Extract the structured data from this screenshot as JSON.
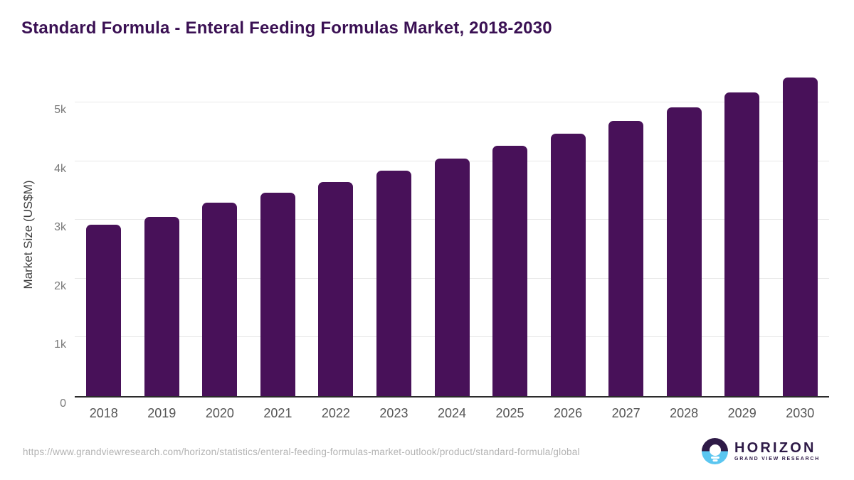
{
  "chart_data": {
    "type": "bar",
    "title": "Standard Formula - Enteral Feeding Formulas Market, 2018-2030",
    "categories": [
      "2018",
      "2019",
      "2020",
      "2021",
      "2022",
      "2023",
      "2024",
      "2025",
      "2026",
      "2027",
      "2028",
      "2029",
      "2030"
    ],
    "values": [
      2920,
      3055,
      3290,
      3465,
      3645,
      3840,
      4045,
      4265,
      4475,
      4690,
      4915,
      5170,
      5430
    ],
    "xlabel": "",
    "ylabel": "Market Size (US$M)",
    "ylim": [
      0,
      5560
    ],
    "yticks": [
      {
        "value": 0,
        "label": "0"
      },
      {
        "value": 1000,
        "label": "1k"
      },
      {
        "value": 2000,
        "label": "2k"
      },
      {
        "value": 3000,
        "label": "3k"
      },
      {
        "value": 4000,
        "label": "4k"
      },
      {
        "value": 5000,
        "label": "5k"
      }
    ],
    "grid": true,
    "legend": false,
    "bar_color": "#481159",
    "title_color": "#3A1053",
    "gridline_color": "#e8e8e8",
    "axis_line_color": "#2b2b2b"
  },
  "footer": {
    "source_url": "https://www.grandviewresearch.com/horizon/statistics/enteral-feeding-formulas-market-outlook/product/standard-formula/global",
    "logo": {
      "name": "HORIZON",
      "subtitle": "GRAND VIEW RESEARCH",
      "navy_color": "#2E1A47",
      "blue_color": "#5BC6F0"
    }
  }
}
